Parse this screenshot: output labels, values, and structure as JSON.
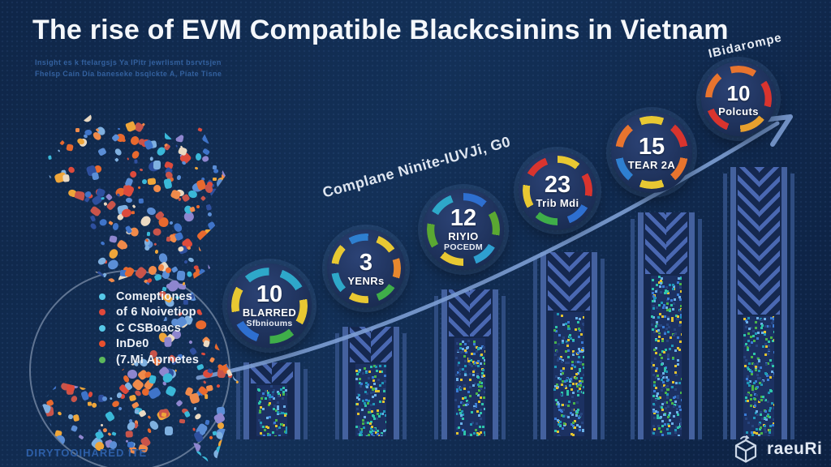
{
  "header": {
    "title": "The rise of EVM Compatible Blackcsinins in Vietnam",
    "subtitle_line1": "Insight es k ftelargsjs Ya IPitr jewrlismt bsrvtsjen",
    "subtitle_line2": "Fhelsp Cain Dia baneseke bsqlckte A, Piate Tisne",
    "corner_label": "IBidarompe"
  },
  "trend": {
    "axis_label": "Complane Ninite-IUVJi, G0",
    "line_color": "#7d9ed4"
  },
  "legend": {
    "items": [
      {
        "label": "Comeptiones",
        "color": "#56c8e8"
      },
      {
        "label": "of 6 Noivetiop",
        "color": "#e0483a"
      },
      {
        "label": "C CSBoacs",
        "color": "#56c8e8"
      },
      {
        "label": "InDe0",
        "color": "#e8502e"
      },
      {
        "label": "(7.Mi Aprnetes",
        "color": "#5cb85c"
      }
    ]
  },
  "milestones": [
    {
      "value": "10",
      "label1": "BLARRED",
      "label2": "Sfbnioums",
      "ring_rotate": 20,
      "ring_colors": [
        "#2ea8c9",
        "#e8c832",
        "#3fae49",
        "#2e6fd0",
        "#e8c832",
        "#2ea8c9"
      ]
    },
    {
      "value": "3",
      "label1": "YENRs",
      "label2": "",
      "ring_rotate": -30,
      "ring_colors": [
        "#2e7fd0",
        "#e8c832",
        "#e8882e",
        "#3fae49",
        "#e8c832",
        "#2ea8c9",
        "#e8c832"
      ]
    },
    {
      "value": "12",
      "label1": "RIYIO",
      "label2": "POCEDM",
      "ring_rotate": 60,
      "ring_colors": [
        "#5aa832",
        "#2e9fd0",
        "#e8c832",
        "#5aa832",
        "#2ea8c9",
        "#2e6fd0"
      ]
    },
    {
      "value": "23",
      "label1": "Trib Mdi",
      "label2": "",
      "ring_rotate": 0,
      "ring_colors": [
        "#e8c832",
        "#d9342e",
        "#2e6fd0",
        "#3fae49",
        "#e8c832",
        "#d9342e"
      ]
    },
    {
      "value": "15",
      "label1": "TEAR 2A",
      "label2": "",
      "ring_rotate": 40,
      "ring_colors": [
        "#d9342e",
        "#e8742e",
        "#e8c832",
        "#2e7fd0",
        "#e8742e",
        "#e8c832"
      ]
    },
    {
      "value": "10",
      "label1": "Polcuts",
      "label2": "",
      "ring_rotate": -15,
      "ring_colors": [
        "#e8742e",
        "#d9342e",
        "#e8a02e",
        "#d9342e",
        "#e8742e"
      ]
    }
  ],
  "footer": {
    "left_text": "DIRYTOOIHARED ITE",
    "brand_name": "raeuRi"
  },
  "palette": {
    "background": "#112a4e",
    "map_colors": [
      "#e8692e",
      "#f08a4a",
      "#dd4b3c",
      "#7fb0e0",
      "#3f74c9",
      "#2e4f9e",
      "#8e86cf",
      "#3ab8d8",
      "#ead9c2",
      "#efa63a",
      "#c9544a",
      "#5b8ed6"
    ],
    "speckle_colors": [
      "#2ec4a9",
      "#49b34a",
      "#e3c32f",
      "#3a7bd5",
      "#6ab0e8",
      "#27457f",
      "#27457f",
      "#1f97b8"
    ]
  }
}
